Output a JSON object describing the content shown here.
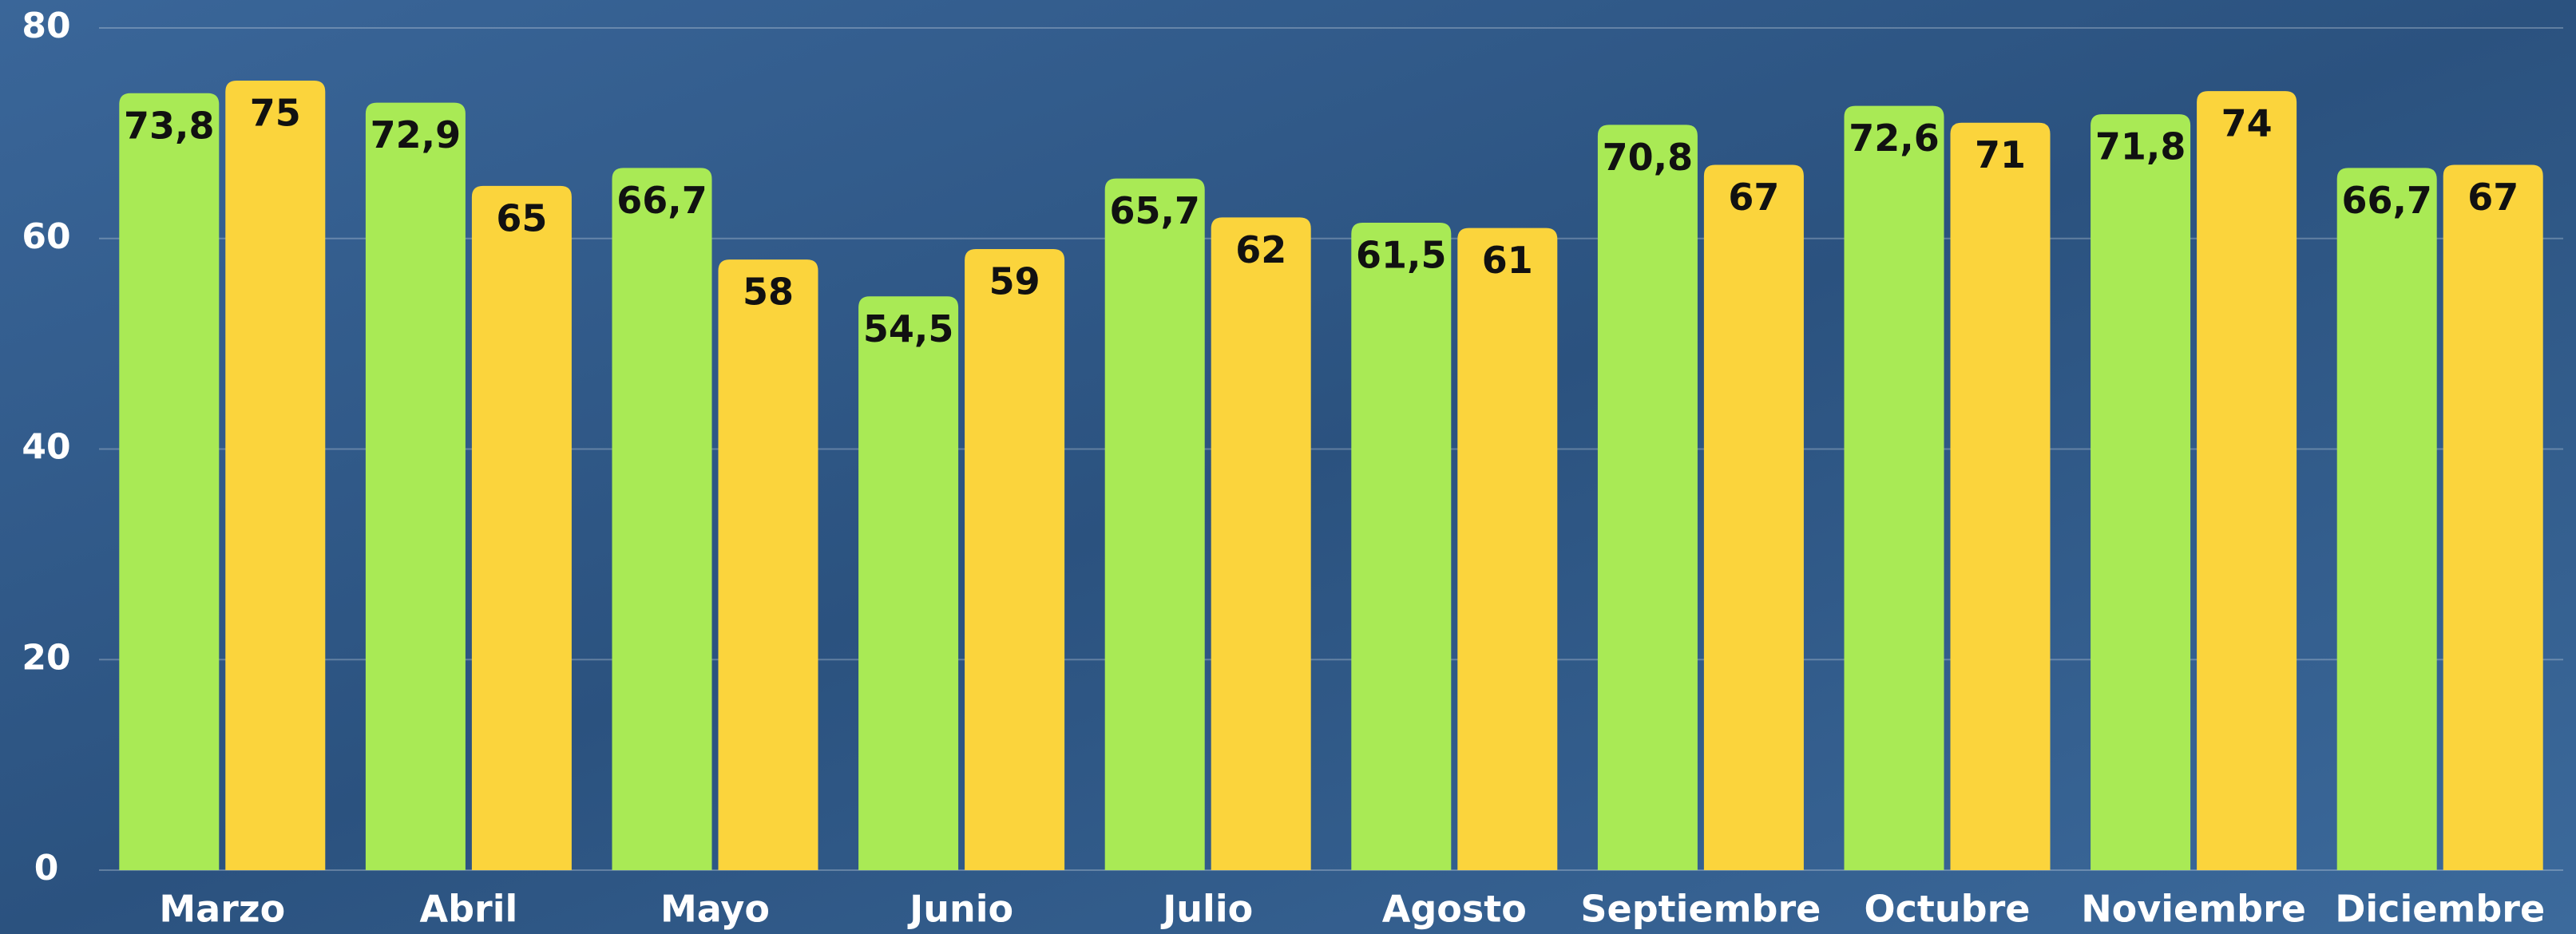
{
  "chart_data": {
    "type": "bar",
    "categories": [
      "Marzo",
      "Abril",
      "Mayo",
      "Junio",
      "Julio",
      "Agosto",
      "Septiembre",
      "Octubre",
      "Noviembre",
      "Diciembre"
    ],
    "series": [
      {
        "color": "#a9ea55",
        "values": [
          73.8,
          72.9,
          66.7,
          54.5,
          65.7,
          61.5,
          70.8,
          72.6,
          71.8,
          66.7
        ],
        "value_labels": [
          "73,8",
          "72,9",
          "66,7",
          "54,5",
          "65,7",
          "61,5",
          "70,8",
          "72,6",
          "71,8",
          "66,7"
        ]
      },
      {
        "color": "#fbd43c",
        "values": [
          75,
          65,
          58,
          59,
          62,
          61,
          67,
          71,
          74,
          67
        ]
      }
    ],
    "ylim": [
      0,
      80
    ],
    "yticks": [
      0,
      20,
      40,
      60,
      80
    ],
    "grid": true
  }
}
